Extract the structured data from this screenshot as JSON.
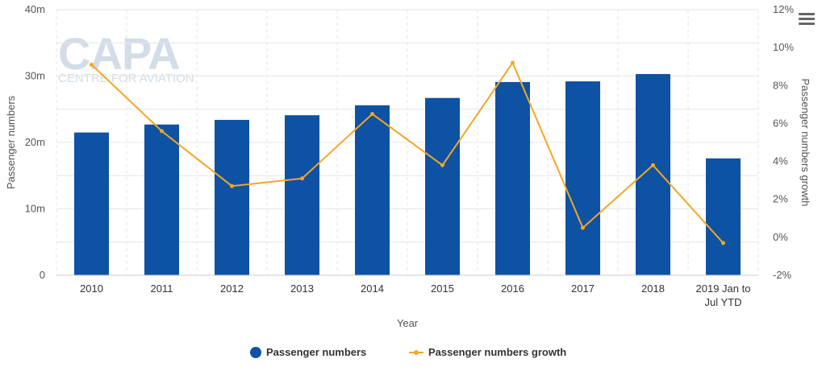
{
  "chart_data": {
    "type": "bar",
    "categories": [
      "2010",
      "2011",
      "2012",
      "2013",
      "2014",
      "2015",
      "2016",
      "2017",
      "2018",
      "2019 Jan to Jul YTD"
    ],
    "series": [
      {
        "name": "Passenger numbers",
        "type": "bar",
        "axis": "left",
        "values": [
          21.5,
          22.7,
          23.4,
          24.1,
          25.6,
          26.7,
          29.1,
          29.2,
          30.3,
          17.6
        ]
      },
      {
        "name": "Passenger numbers growth",
        "type": "line",
        "axis": "right",
        "values": [
          9.1,
          5.6,
          2.7,
          3.1,
          6.5,
          3.8,
          9.2,
          0.5,
          3.8,
          -0.3
        ]
      }
    ],
    "xlabel": "Year",
    "ylabel_left": "Passenger numbers",
    "ylabel_right": "Passenger numbers growth",
    "ylim_left": [
      0,
      40
    ],
    "yticks_left": [
      0,
      10,
      20,
      30,
      40
    ],
    "ytick_labels_left": [
      "0",
      "10m",
      "20m",
      "30m",
      "40m"
    ],
    "ylim_right": [
      -2,
      12
    ],
    "yticks_right": [
      -2,
      0,
      2,
      4,
      6,
      8,
      10,
      12
    ],
    "ytick_labels_right": [
      "-2%",
      "0%",
      "2%",
      "4%",
      "6%",
      "8%",
      "10%",
      "12%"
    ],
    "grid": true,
    "legend_position": "bottom-center",
    "colors": {
      "bar": "#0d52a3",
      "line": "#f5a623",
      "watermark": "#d3dde8"
    }
  },
  "watermark": {
    "logo": "CAPA",
    "subtitle": "CENTRE FOR AVIATION"
  },
  "menu_icon": "hamburger-menu-icon"
}
